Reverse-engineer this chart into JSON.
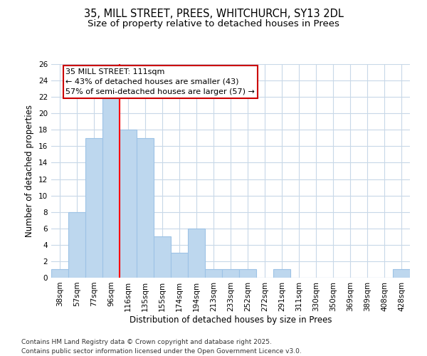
{
  "title_line1": "35, MILL STREET, PREES, WHITCHURCH, SY13 2DL",
  "title_line2": "Size of property relative to detached houses in Prees",
  "xlabel": "Distribution of detached houses by size in Prees",
  "ylabel": "Number of detached properties",
  "bin_labels": [
    "38sqm",
    "57sqm",
    "77sqm",
    "96sqm",
    "116sqm",
    "135sqm",
    "155sqm",
    "174sqm",
    "194sqm",
    "213sqm",
    "233sqm",
    "252sqm",
    "272sqm",
    "291sqm",
    "311sqm",
    "330sqm",
    "350sqm",
    "369sqm",
    "389sqm",
    "408sqm",
    "428sqm"
  ],
  "bar_heights": [
    1,
    8,
    17,
    22,
    18,
    17,
    5,
    3,
    6,
    1,
    1,
    1,
    0,
    1,
    0,
    0,
    0,
    0,
    0,
    0,
    1
  ],
  "bar_color": "#BDD7EE",
  "bar_edge_color": "#9DC3E6",
  "subject_line_bin_index": 3.5,
  "annotation_text_line1": "35 MILL STREET: 111sqm",
  "annotation_text_line2": "← 43% of detached houses are smaller (43)",
  "annotation_text_line3": "57% of semi-detached houses are larger (57) →",
  "annotation_box_color": "#CC0000",
  "ylim": [
    0,
    26
  ],
  "yticks": [
    0,
    2,
    4,
    6,
    8,
    10,
    12,
    14,
    16,
    18,
    20,
    22,
    24,
    26
  ],
  "footer_line1": "Contains HM Land Registry data © Crown copyright and database right 2025.",
  "footer_line2": "Contains public sector information licensed under the Open Government Licence v3.0.",
  "background_color": "#FFFFFF",
  "grid_color": "#C8D8E8",
  "title_fontsize": 10.5,
  "subtitle_fontsize": 9.5,
  "axis_label_fontsize": 8.5,
  "tick_fontsize": 7.5,
  "annotation_fontsize": 8,
  "footer_fontsize": 6.5
}
